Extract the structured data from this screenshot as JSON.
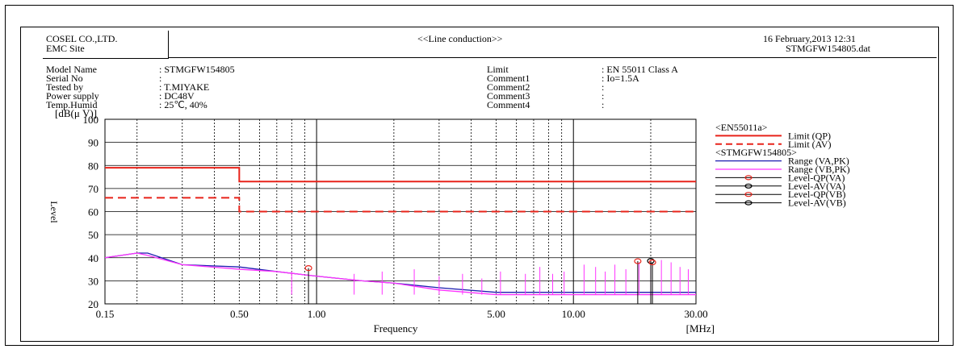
{
  "header": {
    "company": "COSEL CO.,LTD.",
    "site": "EMC Site",
    "title": "<<Line conduction>>",
    "datetime": "16 February,2013 12:31",
    "filename": "STMGFW154805.dat"
  },
  "info_left": [
    {
      "label": "Model Name",
      "value": ": STMGFW154805"
    },
    {
      "label": "Serial No",
      "value": ":"
    },
    {
      "label": "Tested by",
      "value": ": T.MIYAKE"
    },
    {
      "label": "Power supply",
      "value": ": DC48V"
    },
    {
      "label": "Temp.Humid",
      "value": ": 25℃, 40%"
    }
  ],
  "info_right": [
    {
      "label": "Limit",
      "value": ": EN 55011 Class A"
    },
    {
      "label": "Comment1",
      "value": ": Io=1.5A"
    },
    {
      "label": "Comment2",
      "value": ":"
    },
    {
      "label": "Comment3",
      "value": ":"
    },
    {
      "label": "Comment4",
      "value": ":"
    }
  ],
  "colors": {
    "limit": "#e8231a",
    "range_va": "#1d1db0",
    "range_vb": "#ff33ff",
    "qp_marker": "#e8231a",
    "av_marker": "#000000"
  },
  "chart_data": {
    "type": "line",
    "xscale": "log",
    "xlim": [
      0.15,
      30
    ],
    "ylim": [
      20,
      100
    ],
    "xlabel": "Frequency",
    "xunit": "[MHz]",
    "ylabel": "Level",
    "yunit": "[dB(μ V)]",
    "xticks": [
      "0.15",
      "0.50",
      "1.00",
      "5.00",
      "10.00",
      "30.00"
    ],
    "yticks": [
      100,
      90,
      80,
      70,
      60,
      50,
      40,
      30,
      20
    ],
    "grid": true,
    "legend_position": "right",
    "legend": [
      {
        "label": "<EN55011a>",
        "type": "header"
      },
      {
        "label": "Limit (QP)",
        "type": "solid",
        "color": "#e8231a"
      },
      {
        "label": "Limit (AV)",
        "type": "dashed",
        "color": "#e8231a"
      },
      {
        "label": "<STMGFW154805>",
        "type": "header"
      },
      {
        "label": "Range (VA,PK)",
        "type": "solid",
        "color": "#1d1db0"
      },
      {
        "label": "Range (VB,PK)",
        "type": "solid",
        "color": "#ff33ff"
      },
      {
        "label": "Level-QP(VA)",
        "type": "marker",
        "color": "#e8231a"
      },
      {
        "label": "Level-AV(VA)",
        "type": "marker",
        "color": "#000000"
      },
      {
        "label": "Level-QP(VB)",
        "type": "marker",
        "color": "#e8231a"
      },
      {
        "label": "Level-AV(VB)",
        "type": "marker",
        "color": "#000000"
      }
    ],
    "series": [
      {
        "name": "Limit (QP)",
        "style": "solid",
        "color": "#e8231a",
        "x": [
          0.15,
          0.5,
          0.5,
          30
        ],
        "y": [
          79,
          79,
          73,
          73
        ]
      },
      {
        "name": "Limit (AV)",
        "style": "dashed",
        "color": "#e8231a",
        "x": [
          0.15,
          0.5,
          0.5,
          30
        ],
        "y": [
          66,
          66,
          60,
          60
        ]
      },
      {
        "name": "Range (VA,PK)",
        "color": "#1d1db0",
        "x": [
          0.15,
          0.2,
          0.22,
          0.3,
          0.5,
          0.7,
          1.0,
          1.5,
          2.0,
          3.0,
          5.0,
          8.0,
          10.0,
          20.0,
          30.0
        ],
        "y": [
          40,
          42,
          42,
          37,
          36,
          34,
          32,
          30,
          29,
          27,
          25,
          25,
          25,
          25,
          25
        ]
      },
      {
        "name": "Range (VB,PK)",
        "color": "#ff33ff",
        "x": [
          0.15,
          0.2,
          0.22,
          0.3,
          0.5,
          0.7,
          1.0,
          1.5,
          2.0,
          3.0,
          5.0,
          8.0,
          10.0,
          20.0,
          30.0
        ],
        "y": [
          40,
          42,
          41,
          37,
          35,
          34,
          32,
          30,
          29,
          26,
          24,
          24,
          24,
          24,
          24
        ]
      },
      {
        "name": "Range (VB,PK) spurs",
        "color": "#ff33ff",
        "x": [
          0.8,
          1.4,
          1.8,
          2.4,
          3.0,
          3.7,
          4.4,
          5.2,
          6.5,
          7.4,
          8.3,
          9.2,
          11.0,
          12.2,
          13.3,
          14.5,
          16.0,
          18.0,
          20.0,
          22.0,
          24.0,
          26.0,
          28.0
        ],
        "y": [
          34,
          33,
          34,
          35,
          32,
          33,
          31,
          34,
          33,
          36,
          33,
          34,
          37,
          36,
          34,
          37,
          35,
          38,
          38,
          39,
          38,
          36,
          35
        ]
      }
    ],
    "markers": [
      {
        "name": "Level-QP(VA)",
        "x": 0.93,
        "y": 35.5
      },
      {
        "name": "Level-QP(VA)",
        "x": 17.8,
        "y": 38.5
      },
      {
        "name": "Level-AV(VA)",
        "x": 20.0,
        "y": 38.6
      },
      {
        "name": "Level-QP(VB)",
        "x": 20.3,
        "y": 38
      }
    ]
  }
}
